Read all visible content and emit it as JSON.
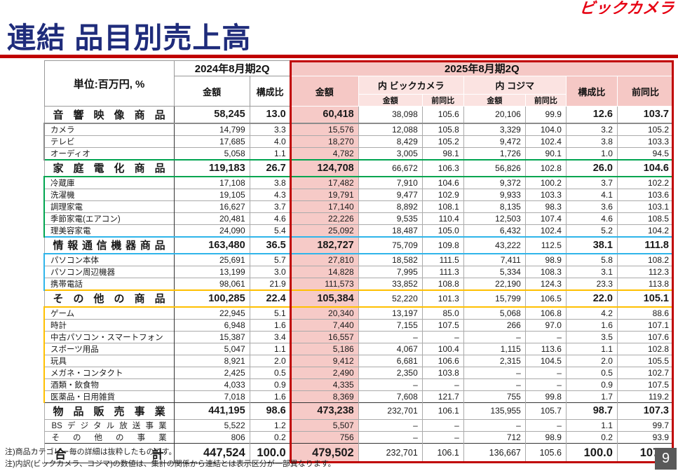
{
  "page": {
    "logo": "ビックカメラ",
    "title": "連結 品目別売上高",
    "page_number": "9",
    "note1": "注)商品カテゴリー毎の詳細は抜粋したものです。",
    "note2": "注)内訳(ビックカメラ、コジマ)の数値は、集計の関係から連結とは表示区分が一部異なります。",
    "colors": {
      "accent_red": "#C00000",
      "title_navy": "#1F2C7B",
      "logo_red": "#E60012",
      "pink_main": "#F5C8C5",
      "pink_light": "#FBE3E1",
      "group_gray": "#8C8C8C",
      "group_green": "#00A550",
      "group_cyan": "#2FB5EA",
      "group_yellow": "#FFC000",
      "badge_gray": "#595959"
    }
  },
  "table": {
    "unit_label": "単位:百万円, %",
    "col_2024": "2024年8月期2Q",
    "col_2025": "2025年8月期2Q",
    "h_amount": "金額",
    "h_ratio": "構成比",
    "h_yoy": "前同比",
    "h_bic": "内 ビックカメラ",
    "h_kojima": "内 コジマ",
    "columns": [
      "label",
      "2024_amount",
      "2024_ratio",
      "2025_amount",
      "bic_amount",
      "bic_yoy",
      "kojima_amount",
      "kojima_yoy",
      "2025_ratio",
      "2025_yoy"
    ],
    "rows": [
      {
        "t": "major",
        "label": "音響映像商品",
        "c": [
          "58,245",
          "13.0",
          "60,418",
          "38,098",
          "105.6",
          "20,106",
          "99.9",
          "12.6",
          "103.7"
        ]
      },
      {
        "t": "sub",
        "g": "gray",
        "first": true,
        "label": "カメラ",
        "c": [
          "14,799",
          "3.3",
          "15,576",
          "12,088",
          "105.8",
          "3,329",
          "104.0",
          "3.2",
          "105.2"
        ]
      },
      {
        "t": "sub",
        "g": "gray",
        "label": "テレビ",
        "c": [
          "17,685",
          "4.0",
          "18,270",
          "8,429",
          "105.2",
          "9,472",
          "102.4",
          "3.8",
          "103.3"
        ]
      },
      {
        "t": "sub",
        "g": "gray",
        "label": "オーディオ",
        "c": [
          "5,058",
          "1.1",
          "4,782",
          "3,005",
          "98.1",
          "1,726",
          "90.1",
          "1.0",
          "94.5"
        ]
      },
      {
        "t": "major",
        "top": "green",
        "label": "家庭電化商品",
        "c": [
          "119,183",
          "26.7",
          "124,708",
          "66,672",
          "106.3",
          "56,826",
          "102.8",
          "26.0",
          "104.6"
        ]
      },
      {
        "t": "sub",
        "g": "green",
        "first": true,
        "label": "冷蔵庫",
        "c": [
          "17,108",
          "3.8",
          "17,482",
          "7,910",
          "104.6",
          "9,372",
          "100.2",
          "3.7",
          "102.2"
        ]
      },
      {
        "t": "sub",
        "g": "green",
        "label": "洗濯機",
        "c": [
          "19,105",
          "4.3",
          "19,791",
          "9,477",
          "102.9",
          "9,933",
          "103.3",
          "4.1",
          "103.6"
        ]
      },
      {
        "t": "sub",
        "g": "green",
        "label": "調理家電",
        "c": [
          "16,627",
          "3.7",
          "17,140",
          "8,892",
          "108.1",
          "8,135",
          "98.3",
          "3.6",
          "103.1"
        ]
      },
      {
        "t": "sub",
        "g": "green",
        "label": "季節家電(エアコン)",
        "c": [
          "20,481",
          "4.6",
          "22,226",
          "9,535",
          "110.4",
          "12,503",
          "107.4",
          "4.6",
          "108.5"
        ]
      },
      {
        "t": "sub",
        "g": "green",
        "label": "理美容家電",
        "c": [
          "24,090",
          "5.4",
          "25,092",
          "18,487",
          "105.0",
          "6,432",
          "102.4",
          "5.2",
          "104.2"
        ]
      },
      {
        "t": "major",
        "top": "cyan",
        "label": "情報通信機器商品",
        "c": [
          "163,480",
          "36.5",
          "182,727",
          "75,709",
          "109.8",
          "43,222",
          "112.5",
          "38.1",
          "111.8"
        ]
      },
      {
        "t": "sub",
        "g": "cyan",
        "first": true,
        "label": "パソコン本体",
        "c": [
          "25,691",
          "5.7",
          "27,810",
          "18,582",
          "111.5",
          "7,411",
          "98.9",
          "5.8",
          "108.2"
        ]
      },
      {
        "t": "sub",
        "g": "cyan",
        "label": "パソコン周辺機器",
        "c": [
          "13,199",
          "3.0",
          "14,828",
          "7,995",
          "111.3",
          "5,334",
          "108.3",
          "3.1",
          "112.3"
        ]
      },
      {
        "t": "sub",
        "g": "cyan",
        "label": "携帯電話",
        "c": [
          "98,061",
          "21.9",
          "111,573",
          "33,852",
          "108.8",
          "22,190",
          "124.3",
          "23.3",
          "113.8"
        ]
      },
      {
        "t": "major",
        "top": "yellow",
        "label": "その他の商品",
        "c": [
          "100,285",
          "22.4",
          "105,384",
          "52,220",
          "101.3",
          "15,799",
          "106.5",
          "22.0",
          "105.1"
        ]
      },
      {
        "t": "sub",
        "g": "yellow",
        "first": true,
        "label": "ゲーム",
        "c": [
          "22,945",
          "5.1",
          "20,340",
          "13,197",
          "85.0",
          "5,068",
          "106.8",
          "4.2",
          "88.6"
        ]
      },
      {
        "t": "sub",
        "g": "yellow",
        "label": "時計",
        "c": [
          "6,948",
          "1.6",
          "7,440",
          "7,155",
          "107.5",
          "266",
          "97.0",
          "1.6",
          "107.1"
        ]
      },
      {
        "t": "sub",
        "g": "yellow",
        "label": "中古パソコン・スマートフォン",
        "c": [
          "15,387",
          "3.4",
          "16,557",
          "–",
          "–",
          "–",
          "–",
          "3.5",
          "107.6"
        ]
      },
      {
        "t": "sub",
        "g": "yellow",
        "label": "スポーツ用品",
        "c": [
          "5,047",
          "1.1",
          "5,186",
          "4,067",
          "100.4",
          "1,115",
          "113.6",
          "1.1",
          "102.8"
        ]
      },
      {
        "t": "sub",
        "g": "yellow",
        "label": "玩具",
        "c": [
          "8,921",
          "2.0",
          "9,412",
          "6,681",
          "106.6",
          "2,315",
          "104.5",
          "2.0",
          "105.5"
        ]
      },
      {
        "t": "sub",
        "g": "yellow",
        "label": "メガネ・コンタクト",
        "c": [
          "2,425",
          "0.5",
          "2,490",
          "2,350",
          "103.8",
          "–",
          "–",
          "0.5",
          "102.7"
        ]
      },
      {
        "t": "sub",
        "g": "yellow",
        "label": "酒類・飲食物",
        "c": [
          "4,033",
          "0.9",
          "4,335",
          "–",
          "–",
          "–",
          "–",
          "0.9",
          "107.5"
        ]
      },
      {
        "t": "sub",
        "g": "yellow",
        "label": "医薬品・日用雑貨",
        "c": [
          "7,018",
          "1.6",
          "8,369",
          "7,608",
          "121.7",
          "755",
          "99.8",
          "1.7",
          "119.2"
        ]
      },
      {
        "t": "major",
        "top": "black",
        "label": "物品販売事業",
        "c": [
          "441,195",
          "98.6",
          "473,238",
          "232,701",
          "106.1",
          "135,955",
          "105.7",
          "98.7",
          "107.3"
        ]
      },
      {
        "t": "mid",
        "label": "BSデジタル放送事業",
        "c": [
          "5,522",
          "1.2",
          "5,507",
          "–",
          "–",
          "–",
          "–",
          "1.1",
          "99.7"
        ]
      },
      {
        "t": "mid",
        "label": "その他の事業",
        "c": [
          "806",
          "0.2",
          "756",
          "–",
          "–",
          "712",
          "98.9",
          "0.2",
          "93.9"
        ]
      },
      {
        "t": "total",
        "top": "black",
        "label": "合計",
        "c": [
          "447,524",
          "100.0",
          "479,502",
          "232,701",
          "106.1",
          "136,667",
          "105.6",
          "100.0",
          "107.1"
        ]
      }
    ]
  }
}
